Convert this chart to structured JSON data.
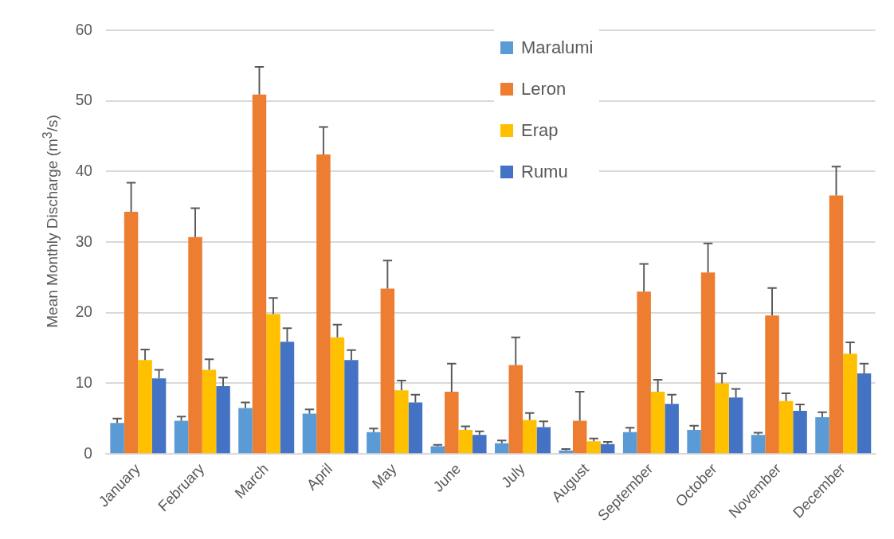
{
  "chart_data": {
    "type": "bar",
    "ylabel": "Mean Monthly Discharge (m$^{3}$/s)",
    "categories": [
      "January",
      "February",
      "March",
      "April",
      "May",
      "June",
      "July",
      "August",
      "September",
      "October",
      "November",
      "December"
    ],
    "series": [
      {
        "name": "Maralumi",
        "color": "#5b9bd5",
        "values": [
          4.4,
          4.7,
          6.5,
          5.7,
          3.1,
          1.1,
          1.5,
          0.5,
          3.1,
          3.4,
          2.7,
          5.2
        ],
        "errors": [
          [
            4.4,
            5.0
          ],
          [
            4.7,
            5.3
          ],
          [
            6.5,
            7.3
          ],
          [
            5.7,
            6.3
          ],
          [
            3.1,
            3.6
          ],
          [
            1.1,
            1.3
          ],
          [
            1.5,
            1.9
          ],
          [
            0.5,
            0.7
          ],
          [
            3.1,
            3.7
          ],
          [
            3.4,
            4.0
          ],
          [
            2.7,
            3.0
          ],
          [
            5.2,
            5.9
          ]
        ]
      },
      {
        "name": "Leron",
        "color": "#ed7d31",
        "values": [
          34.3,
          30.7,
          50.9,
          42.4,
          23.4,
          8.8,
          12.6,
          4.7,
          23.0,
          25.7,
          19.6,
          36.6
        ],
        "errors": [
          [
            34.3,
            38.4
          ],
          [
            30.7,
            34.8
          ],
          [
            50.9,
            54.8
          ],
          [
            42.4,
            46.3
          ],
          [
            23.4,
            27.4
          ],
          [
            8.8,
            12.8
          ],
          [
            12.6,
            16.5
          ],
          [
            4.7,
            8.8
          ],
          [
            23.0,
            26.9
          ],
          [
            25.7,
            29.8
          ],
          [
            19.6,
            23.5
          ],
          [
            36.6,
            40.7
          ]
        ]
      },
      {
        "name": "Erap",
        "color": "#ffc000",
        "values": [
          13.3,
          11.9,
          19.8,
          16.5,
          9.0,
          3.4,
          4.8,
          1.8,
          8.8,
          10.0,
          7.5,
          14.2
        ],
        "errors": [
          [
            13.3,
            14.8
          ],
          [
            11.9,
            13.4
          ],
          [
            19.8,
            22.1
          ],
          [
            16.5,
            18.3
          ],
          [
            9.0,
            10.4
          ],
          [
            3.4,
            3.9
          ],
          [
            4.8,
            5.8
          ],
          [
            1.8,
            2.2
          ],
          [
            8.8,
            10.5
          ],
          [
            10.0,
            11.4
          ],
          [
            7.5,
            8.6
          ],
          [
            14.2,
            15.8
          ]
        ]
      },
      {
        "name": "Rumu",
        "color": "#4472c4",
        "values": [
          10.7,
          9.6,
          15.9,
          13.3,
          7.3,
          2.7,
          3.8,
          1.4,
          7.1,
          8.0,
          6.1,
          11.4
        ],
        "errors": [
          [
            10.7,
            11.9
          ],
          [
            9.6,
            10.8
          ],
          [
            15.9,
            17.8
          ],
          [
            13.3,
            14.7
          ],
          [
            7.3,
            8.4
          ],
          [
            2.7,
            3.2
          ],
          [
            3.8,
            4.6
          ],
          [
            1.4,
            1.7
          ],
          [
            7.1,
            8.4
          ],
          [
            8.0,
            9.2
          ],
          [
            6.1,
            7.0
          ],
          [
            11.4,
            12.8
          ]
        ]
      }
    ],
    "ylim": [
      0,
      60
    ],
    "yticks": [
      0,
      10,
      20,
      30,
      40,
      50,
      60
    ],
    "grid": "y",
    "legend": "top right"
  }
}
